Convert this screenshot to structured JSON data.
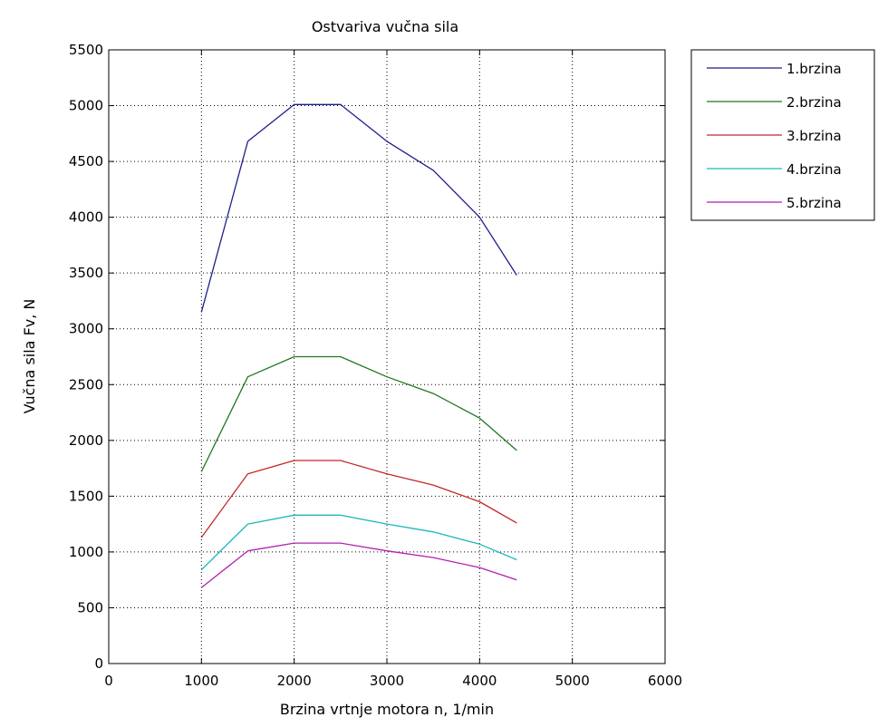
{
  "chart_data": {
    "type": "line",
    "title": "Ostvariva vučna sila",
    "xlabel": "Brzina vrtnje motora n, 1/min",
    "ylabel": "Vučna sila Fv, N",
    "xlim": [
      0,
      6000
    ],
    "ylim": [
      0,
      5500
    ],
    "xticks": [
      0,
      1000,
      2000,
      3000,
      4000,
      5000,
      6000
    ],
    "yticks": [
      0,
      500,
      1000,
      1500,
      2000,
      2500,
      3000,
      3500,
      4000,
      4500,
      5000,
      5500
    ],
    "grid": true,
    "legend_position": "outside-top-right",
    "x": [
      1000,
      1500,
      2000,
      2500,
      3000,
      3500,
      4000,
      4400
    ],
    "series": [
      {
        "name": "1.brzina",
        "color": "#1f1f8c",
        "values": [
          3150,
          4680,
          5010,
          5010,
          4680,
          4420,
          4000,
          3480
        ]
      },
      {
        "name": "2.brzina",
        "color": "#217821",
        "values": [
          1720,
          2570,
          2750,
          2750,
          2570,
          2420,
          2200,
          1910
        ]
      },
      {
        "name": "3.brzina",
        "color": "#c0282a",
        "values": [
          1130,
          1700,
          1820,
          1820,
          1700,
          1600,
          1450,
          1260
        ]
      },
      {
        "name": "4.brzina",
        "color": "#1fb7b7",
        "values": [
          840,
          1250,
          1330,
          1330,
          1250,
          1180,
          1070,
          930
        ]
      },
      {
        "name": "5.brzina",
        "color": "#b21fb2",
        "values": [
          680,
          1010,
          1080,
          1080,
          1010,
          950,
          860,
          750
        ]
      }
    ]
  }
}
